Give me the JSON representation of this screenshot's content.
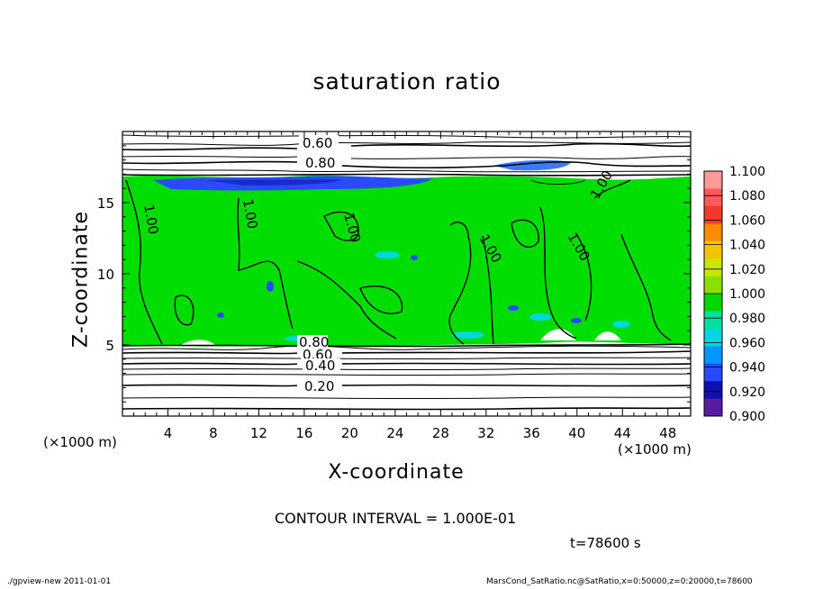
{
  "chart_data": {
    "type": "heatmap",
    "title": "saturation ratio",
    "xlabel": "X-coordinate",
    "ylabel": "Z-coordinate",
    "x_unit": "(×1000 m)",
    "x_ticks": [
      4,
      8,
      12,
      16,
      20,
      24,
      28,
      32,
      36,
      40,
      44,
      48
    ],
    "y_ticks": [
      5,
      10,
      15
    ],
    "xlim": [
      0,
      50
    ],
    "ylim": [
      0,
      20
    ],
    "contour_interval": "CONTOUR INTERVAL = 1.000E-01",
    "time": "t=78600 s",
    "contour_labels": [
      "0.60",
      "0.80",
      "1.00",
      "0.80",
      "0.60",
      "0.40",
      "0.20"
    ],
    "colorbar": {
      "levels": [
        "1.100",
        "1.080",
        "1.060",
        "1.040",
        "1.020",
        "1.000",
        "0.980",
        "0.960",
        "0.940",
        "0.920",
        "0.900"
      ],
      "colors": [
        "#ff9a9a",
        "#ff5a5a",
        "#f23a2a",
        "#ff8c00",
        "#f5c400",
        "#c8e600",
        "#8ce000",
        "#00d800",
        "#00e0a0",
        "#00d8e0",
        "#0096ff",
        "#2a4aff",
        "#1010b0",
        "#5a1aa0"
      ]
    },
    "dominant_value_band": "1.000"
  },
  "footer": {
    "left": "./gpview-new   2011-01-01",
    "right": "MarsCond_SatRatio.nc@SatRatio,x=0:50000,z=0:20000,t=78600"
  }
}
